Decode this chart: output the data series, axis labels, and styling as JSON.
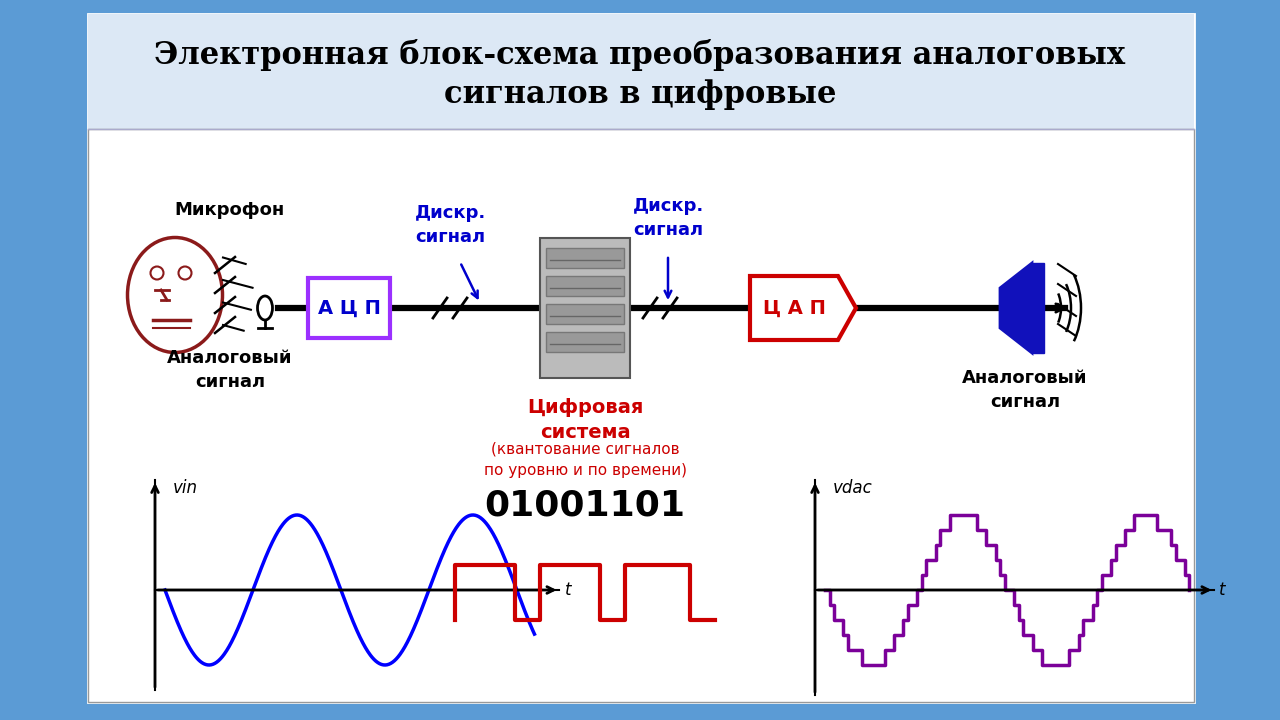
{
  "title_line1": "Электронная блок-схема преобразования аналоговых",
  "title_line2": "сигналов в цифровые",
  "bg_outer": "#5b9bd5",
  "title_bg": "#dce8f5",
  "label_mikrophone": "Микрофон",
  "label_analog_left": "Аналоговый\nсигнал",
  "label_diskr_left": "Дискр.\nсигнал",
  "label_diskr_right": "Дискр.\nсигнал",
  "label_digital_sys": "Цифровая\nсистема",
  "label_digital_sys2": "(квантование сигналов\nпо уровню и по времени)",
  "label_analog_right": "Аналоговый\nсигнал",
  "label_acp": "А Ц П",
  "label_cap": "Ц А П",
  "label_vin": "vin",
  "label_vdac": "vdac",
  "label_t1": "t",
  "label_t2": "t",
  "label_binary": "01001101",
  "colors": {
    "blue_label": "#0000cc",
    "red_label": "#cc0000",
    "dark_red": "#8B0000",
    "black": "#000000",
    "white": "#ffffff",
    "purple": "#7B0099",
    "blue_wave": "#0000ff",
    "red_pulse": "#cc0000",
    "acp_border": "#9b30ff",
    "cap_border": "#cc0000",
    "speaker_blue": "#1111bb",
    "face_red": "#8B1A1A",
    "server_gray": "#aaaaaa"
  }
}
